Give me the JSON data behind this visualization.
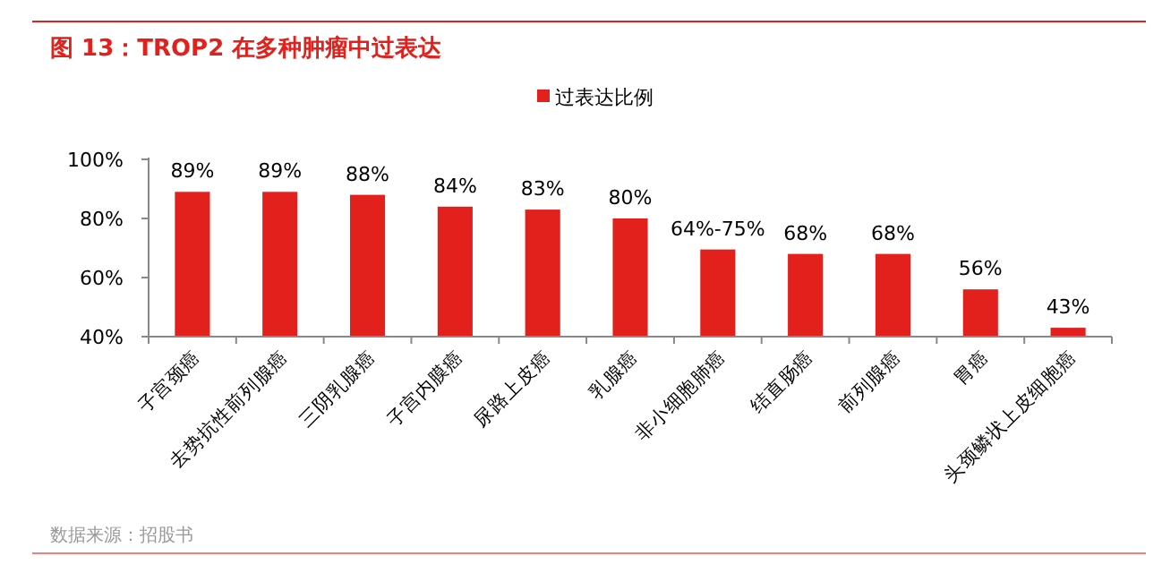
{
  "chart_data": {
    "type": "bar",
    "title": "图 13：TROP2 在多种肿瘤中过表达",
    "categories": [
      "子宫颈癌",
      "去势抗性前列腺癌",
      "三阴乳腺癌",
      "子宫内膜癌",
      "尿路上皮癌",
      "乳腺癌",
      "非小细胞肺癌",
      "结直肠癌",
      "前列腺癌",
      "胃癌",
      "头颈鳞状上皮细胞癌"
    ],
    "series": [
      {
        "name": "过表达比例",
        "color": "#e2201c",
        "values": [
          89,
          89,
          88,
          84,
          83,
          80,
          69.5,
          68,
          68,
          56,
          43
        ],
        "value_labels": [
          "89%",
          "89%",
          "88%",
          "84%",
          "83%",
          "80%",
          null,
          "68%",
          "68%",
          "56%",
          "43%"
        ]
      }
    ],
    "ylim": [
      40,
      100
    ],
    "yticks": [
      {
        "value": 40,
        "label": "40%"
      },
      {
        "value": 60,
        "label": "60%"
      },
      {
        "value": 80,
        "label": "80%"
      },
      {
        "value": 100,
        "label": "100%"
      }
    ],
    "grid": false,
    "legend": "top",
    "annotations": [
      {
        "text": "64%-75%",
        "x": "非小细胞肺癌",
        "y": 69.5
      },
      "数据来源：招股书"
    ]
  }
}
